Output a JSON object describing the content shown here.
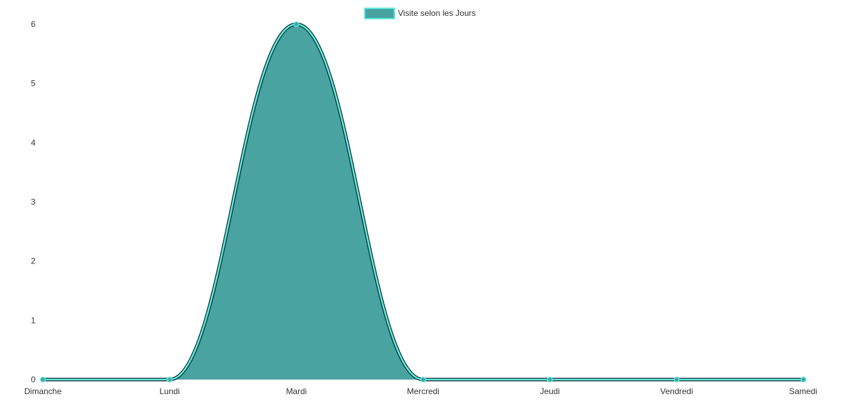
{
  "chart_data": {
    "type": "area",
    "categories": [
      "Dimanche",
      "Lundi",
      "Mardi",
      "Mercredi",
      "Jeudi",
      "Vendredi",
      "Samedi"
    ],
    "series": [
      {
        "name": "Visite selon les Jours",
        "values": [
          0,
          0,
          6,
          0,
          0,
          0,
          0
        ],
        "fill_color": "#48a3a1",
        "line_color": "#5eeadf",
        "edge_color": "#0b2b2a"
      }
    ],
    "yticks": [
      0,
      1,
      2,
      3,
      4,
      5,
      6
    ],
    "ylim": [
      0,
      6
    ],
    "legend_position": "top-center",
    "grid": false
  }
}
